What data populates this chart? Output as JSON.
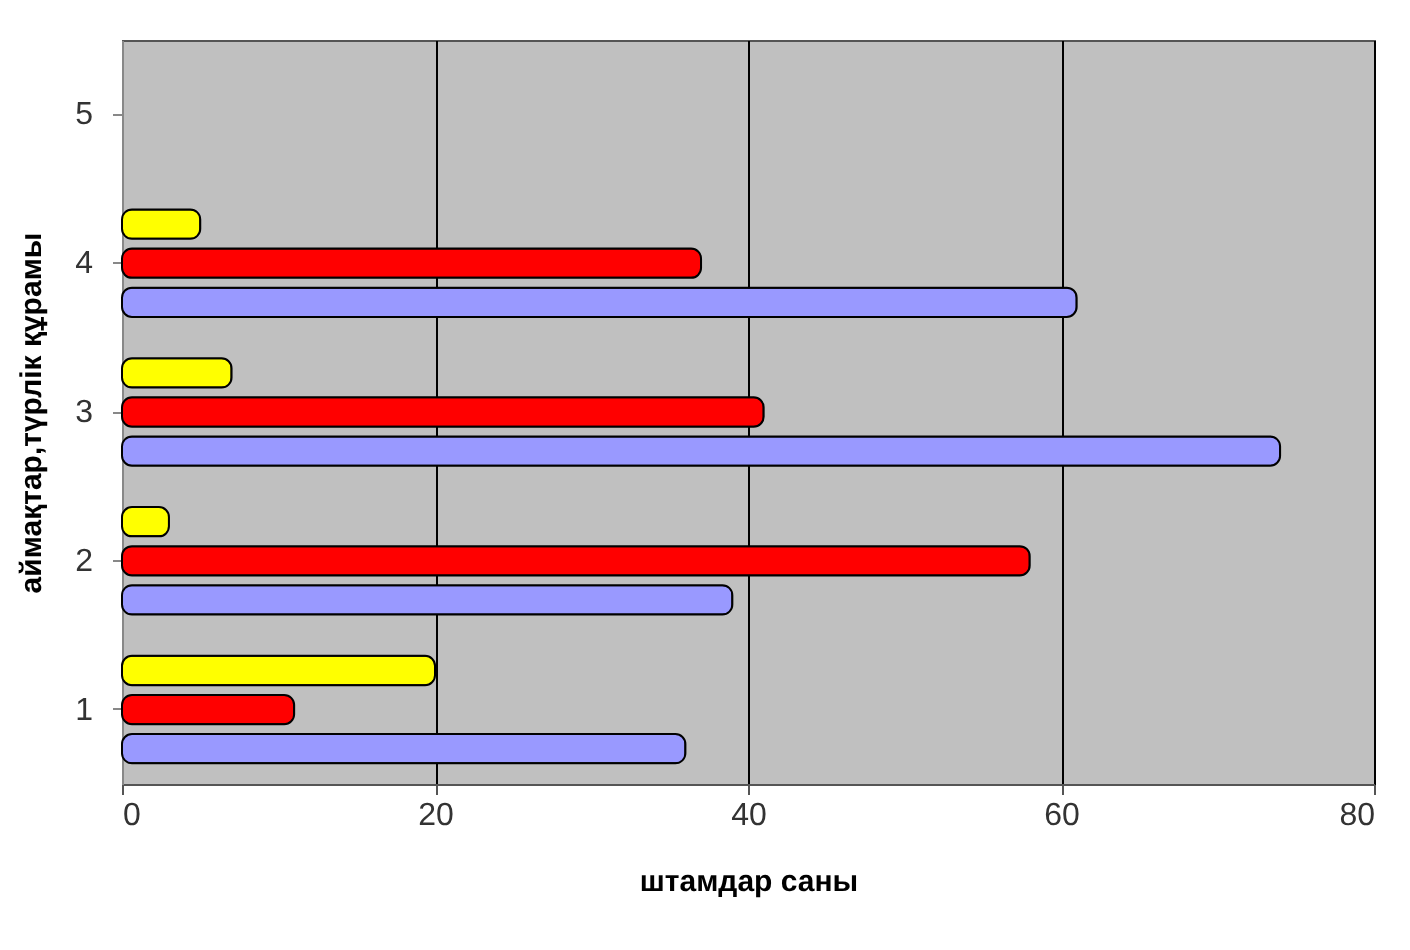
{
  "chart_data": {
    "type": "bar",
    "orientation": "horizontal",
    "xlabel": "штамдар саны",
    "ylabel": "аймақтар,түрлік құрамы",
    "categories": [
      "5",
      "4",
      "3",
      "2",
      "1"
    ],
    "series": [
      {
        "color": "#9999ff",
        "values": [
          null,
          61,
          74,
          39,
          36
        ]
      },
      {
        "color": "#ff0000",
        "values": [
          null,
          37,
          41,
          58,
          11
        ]
      },
      {
        "color": "#ffff00",
        "values": [
          null,
          5,
          7,
          3,
          20
        ]
      }
    ],
    "xlim": [
      0,
      80
    ],
    "xticks": [
      0,
      20,
      40,
      60,
      80
    ],
    "grid": "x",
    "legend": false
  }
}
